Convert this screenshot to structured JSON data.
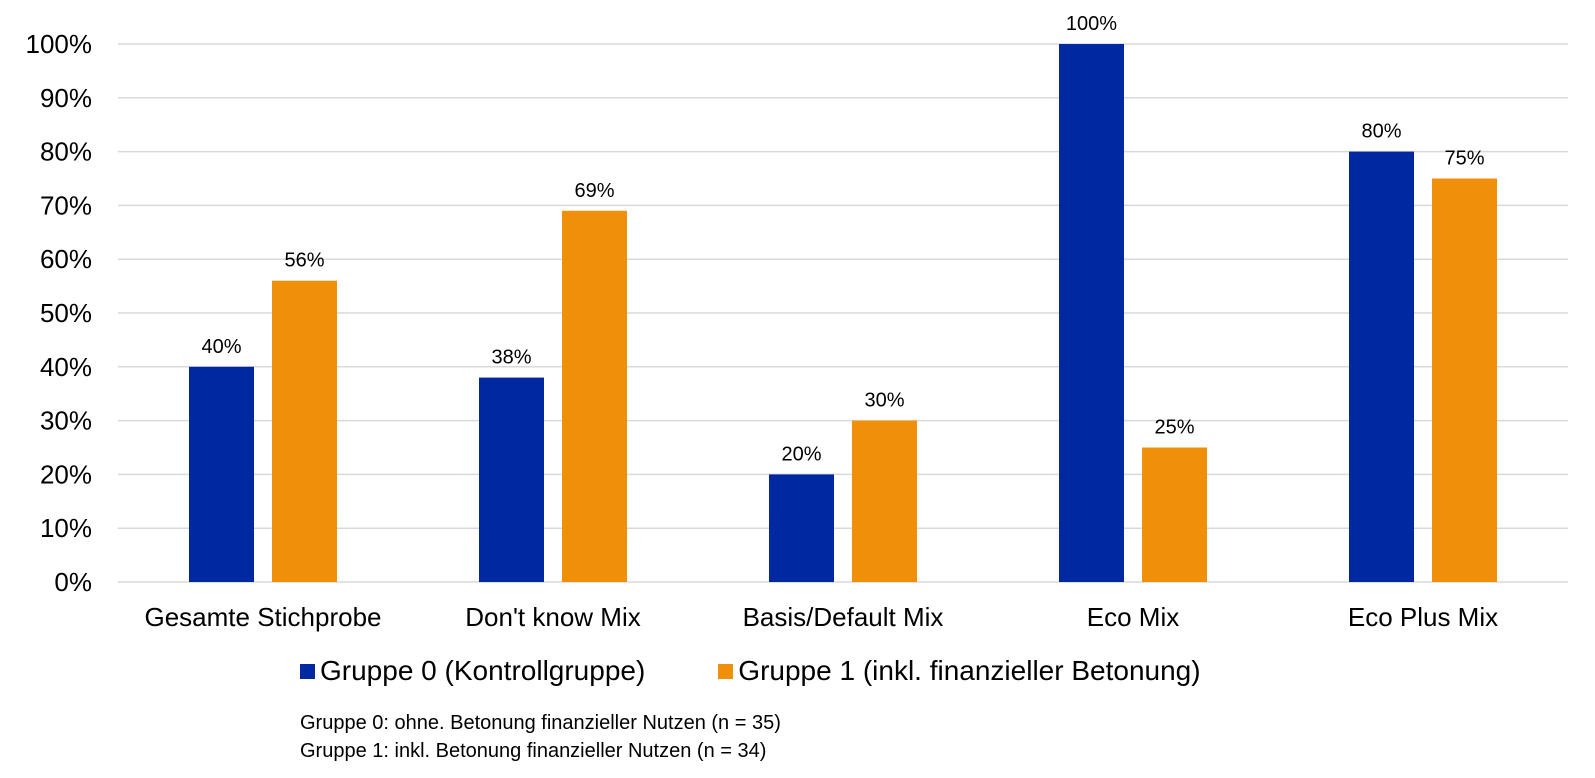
{
  "chart_data": {
    "type": "bar",
    "categories": [
      "Gesamte Stichprobe",
      "Don't know Mix",
      "Basis/Default Mix",
      "Eco Mix",
      "Eco Plus Mix"
    ],
    "series": [
      {
        "name": "Gruppe 0 (Kontrollgruppe)",
        "values": [
          40,
          38,
          20,
          100,
          80
        ],
        "color": "#0028A0"
      },
      {
        "name": "Gruppe 1 (inkl. finanzieller Betonung)",
        "values": [
          56,
          69,
          30,
          25,
          75
        ],
        "color": "#F0900A"
      }
    ],
    "data_labels": [
      [
        "40%",
        "38%",
        "20%",
        "100%",
        "80%"
      ],
      [
        "56%",
        "69%",
        "30%",
        "25%",
        "75%"
      ]
    ],
    "yticks": [
      "0%",
      "10%",
      "20%",
      "30%",
      "40%",
      "50%",
      "60%",
      "70%",
      "80%",
      "90%",
      "100%"
    ],
    "ylim": [
      0,
      100
    ],
    "grid": true,
    "gridColor": "#D9D9D9",
    "legend_position": "bottom",
    "title": "",
    "xlabel": "",
    "ylabel": ""
  },
  "notes": [
    "Gruppe 0: ohne. Betonung finanzieller Nutzen (n = 35)",
    "Gruppe 1: inkl. Betonung finanzieller Nutzen (n = 34)"
  ]
}
